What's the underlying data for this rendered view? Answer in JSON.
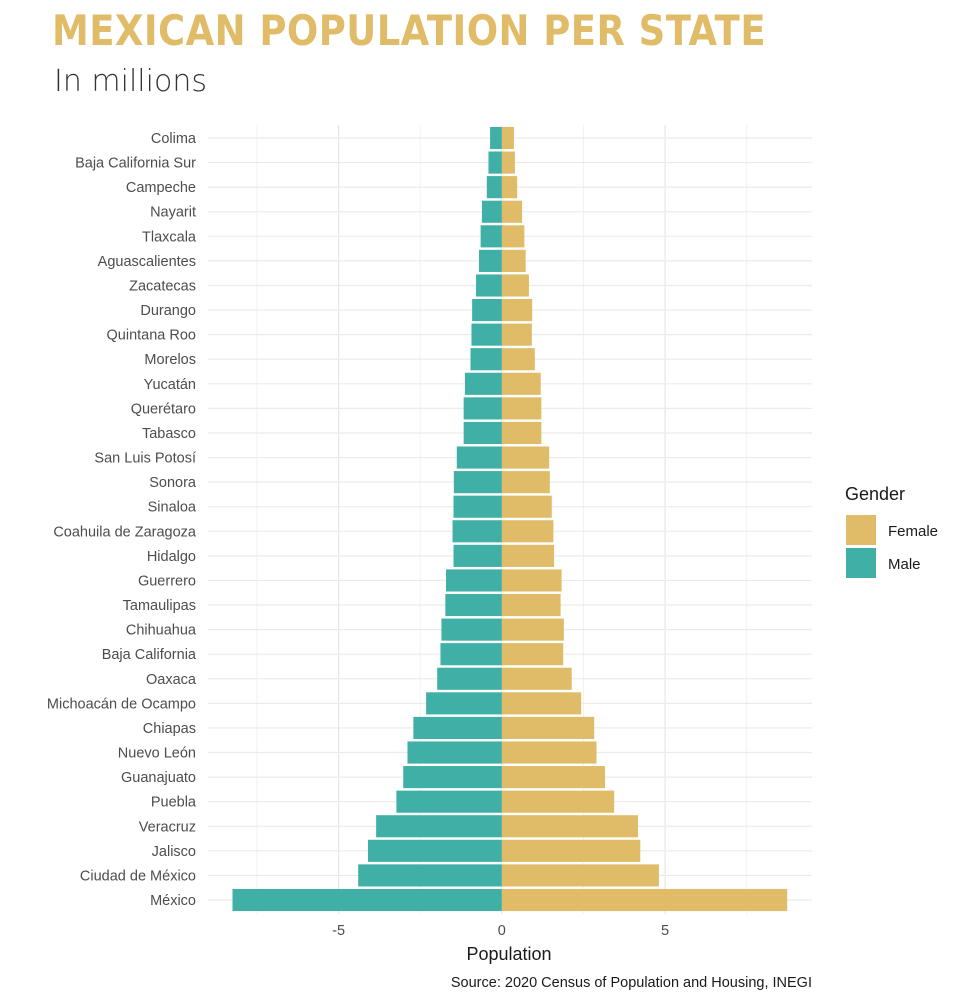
{
  "header": {
    "title": "MEXICAN POPULATION PER STATE",
    "subtitle": "In millions"
  },
  "chart_data": {
    "type": "bar",
    "orientation": "horizontal",
    "categories": [
      "Colima",
      "Baja California Sur",
      "Campeche",
      "Nayarit",
      "Tlaxcala",
      "Aguascalientes",
      "Zacatecas",
      "Durango",
      "Quintana Roo",
      "Morelos",
      "Yucatán",
      "Querétaro",
      "Tabasco",
      "San Luis Potosí",
      "Sonora",
      "Sinaloa",
      "Coahuila de Zaragoza",
      "Hidalgo",
      "Guerrero",
      "Tamaulipas",
      "Chihuahua",
      "Baja California",
      "Oaxaca",
      "Michoacán de Ocampo",
      "Chiapas",
      "Nuevo León",
      "Guanajuato",
      "Puebla",
      "Veracruz",
      "Jalisco",
      "Ciudad de México",
      "México"
    ],
    "series": [
      {
        "name": "Female",
        "color": "#e0bc68",
        "values": [
          0.37,
          0.4,
          0.47,
          0.62,
          0.69,
          0.73,
          0.83,
          0.93,
          0.92,
          1.01,
          1.19,
          1.21,
          1.21,
          1.45,
          1.47,
          1.53,
          1.58,
          1.6,
          1.83,
          1.8,
          1.9,
          1.88,
          2.14,
          2.43,
          2.83,
          2.9,
          3.16,
          3.44,
          4.17,
          4.24,
          4.81,
          8.74
        ]
      },
      {
        "name": "Male",
        "color": "#40b0a6",
        "values": [
          -0.36,
          -0.41,
          -0.46,
          -0.61,
          -0.65,
          -0.7,
          -0.79,
          -0.91,
          -0.93,
          -0.96,
          -1.13,
          -1.17,
          -1.17,
          -1.38,
          -1.47,
          -1.48,
          -1.51,
          -1.48,
          -1.71,
          -1.73,
          -1.85,
          -1.88,
          -1.98,
          -2.32,
          -2.71,
          -2.89,
          -3.02,
          -3.23,
          -3.85,
          -4.1,
          -4.4,
          -8.25
        ]
      }
    ],
    "xlabel": "Population",
    "xlim": [
      -9.0,
      9.5
    ],
    "xticks": [
      -5,
      0,
      5
    ],
    "xtick_labels": [
      "-5",
      "0",
      "5"
    ],
    "grid": true,
    "legend": {
      "title": "Gender",
      "position": "right"
    },
    "source": "Source: 2020 Census of Population and Housing, INEGI"
  }
}
